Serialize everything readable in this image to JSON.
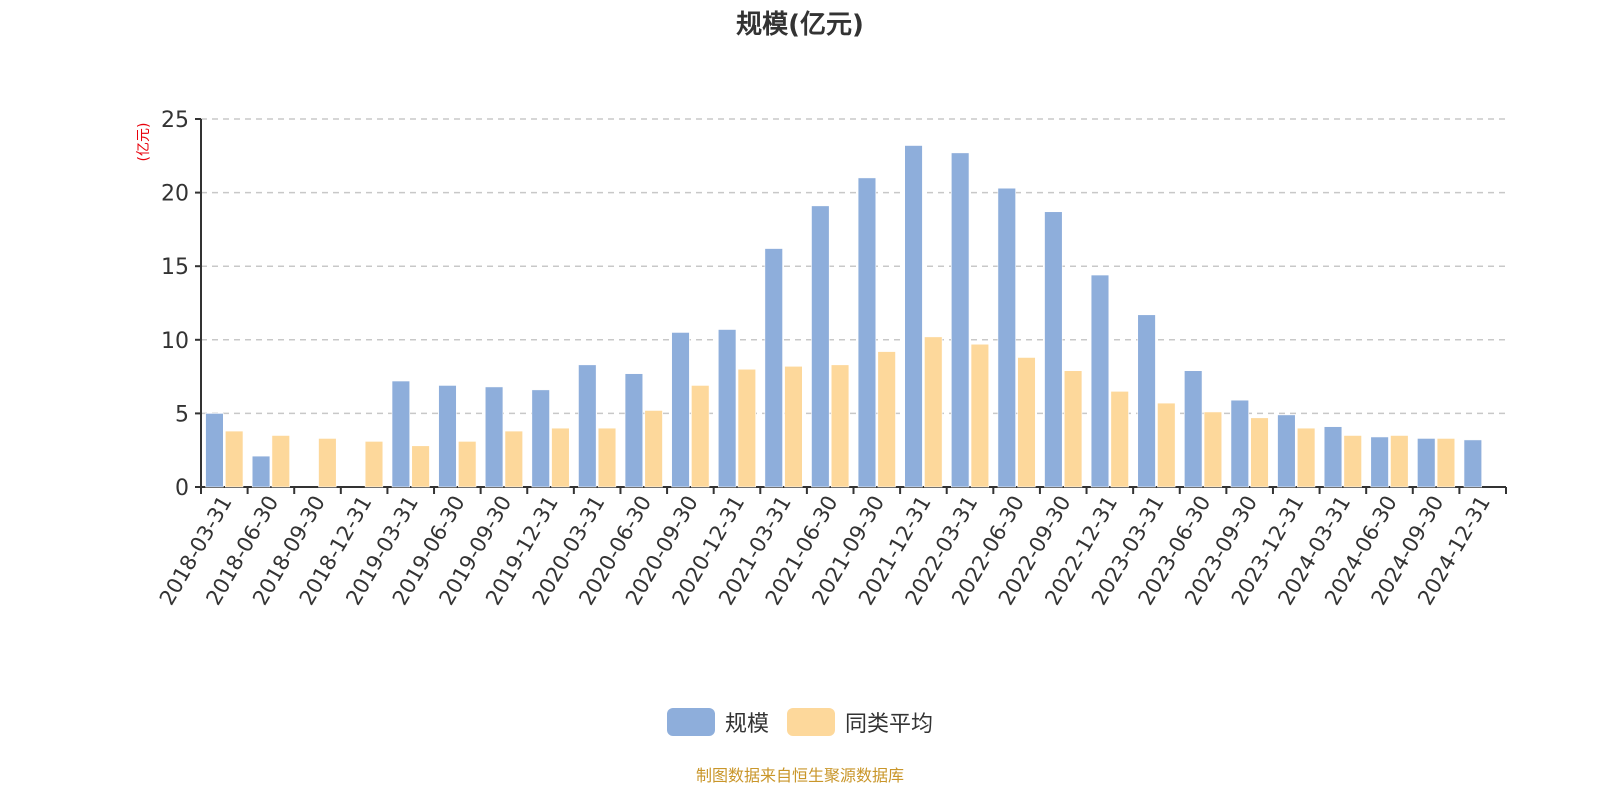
{
  "title": "规模(亿元)",
  "y_unit_label": "(亿元)",
  "footer": "制图数据来自恒生聚源数据库",
  "colors": {
    "series1": "#8eaedb",
    "series2": "#fdd89b",
    "unit_label": "#e8000b",
    "footer": "#c9962a"
  },
  "legend": [
    {
      "label": "规模",
      "color": "#8eaedb"
    },
    {
      "label": "同类平均",
      "color": "#fdd89b"
    }
  ],
  "chart_data": {
    "type": "bar",
    "title": "规模(亿元)",
    "xlabel": "",
    "ylabel": "(亿元)",
    "ylim": [
      0,
      25
    ],
    "yticks": [
      0,
      5,
      10,
      15,
      20,
      25
    ],
    "grid": true,
    "legend_position": "bottom",
    "categories": [
      "2018-03-31",
      "2018-06-30",
      "2018-09-30",
      "2018-12-31",
      "2019-03-31",
      "2019-06-30",
      "2019-09-30",
      "2019-12-31",
      "2020-03-31",
      "2020-06-30",
      "2020-09-30",
      "2020-12-31",
      "2021-03-31",
      "2021-06-30",
      "2021-09-30",
      "2021-12-31",
      "2022-03-31",
      "2022-06-30",
      "2022-09-30",
      "2022-12-31",
      "2023-03-31",
      "2023-06-30",
      "2023-09-30",
      "2023-12-31",
      "2024-03-31",
      "2024-06-30",
      "2024-09-30",
      "2024-12-31"
    ],
    "series": [
      {
        "name": "规模",
        "values": [
          5.0,
          2.1,
          0,
          0,
          7.2,
          6.9,
          6.8,
          6.6,
          8.3,
          7.7,
          10.5,
          10.7,
          16.2,
          19.1,
          21.0,
          23.2,
          22.7,
          20.3,
          18.7,
          14.4,
          11.7,
          7.9,
          5.9,
          4.9,
          4.1,
          3.4,
          3.3,
          3.2
        ]
      },
      {
        "name": "同类平均",
        "values": [
          3.8,
          3.5,
          3.3,
          3.1,
          2.8,
          3.1,
          3.8,
          4.0,
          4.0,
          5.2,
          6.9,
          8.0,
          8.2,
          8.3,
          9.2,
          10.2,
          9.7,
          8.8,
          7.9,
          6.5,
          5.7,
          5.1,
          4.7,
          4.0,
          3.5,
          3.5,
          3.3,
          0
        ]
      }
    ]
  }
}
